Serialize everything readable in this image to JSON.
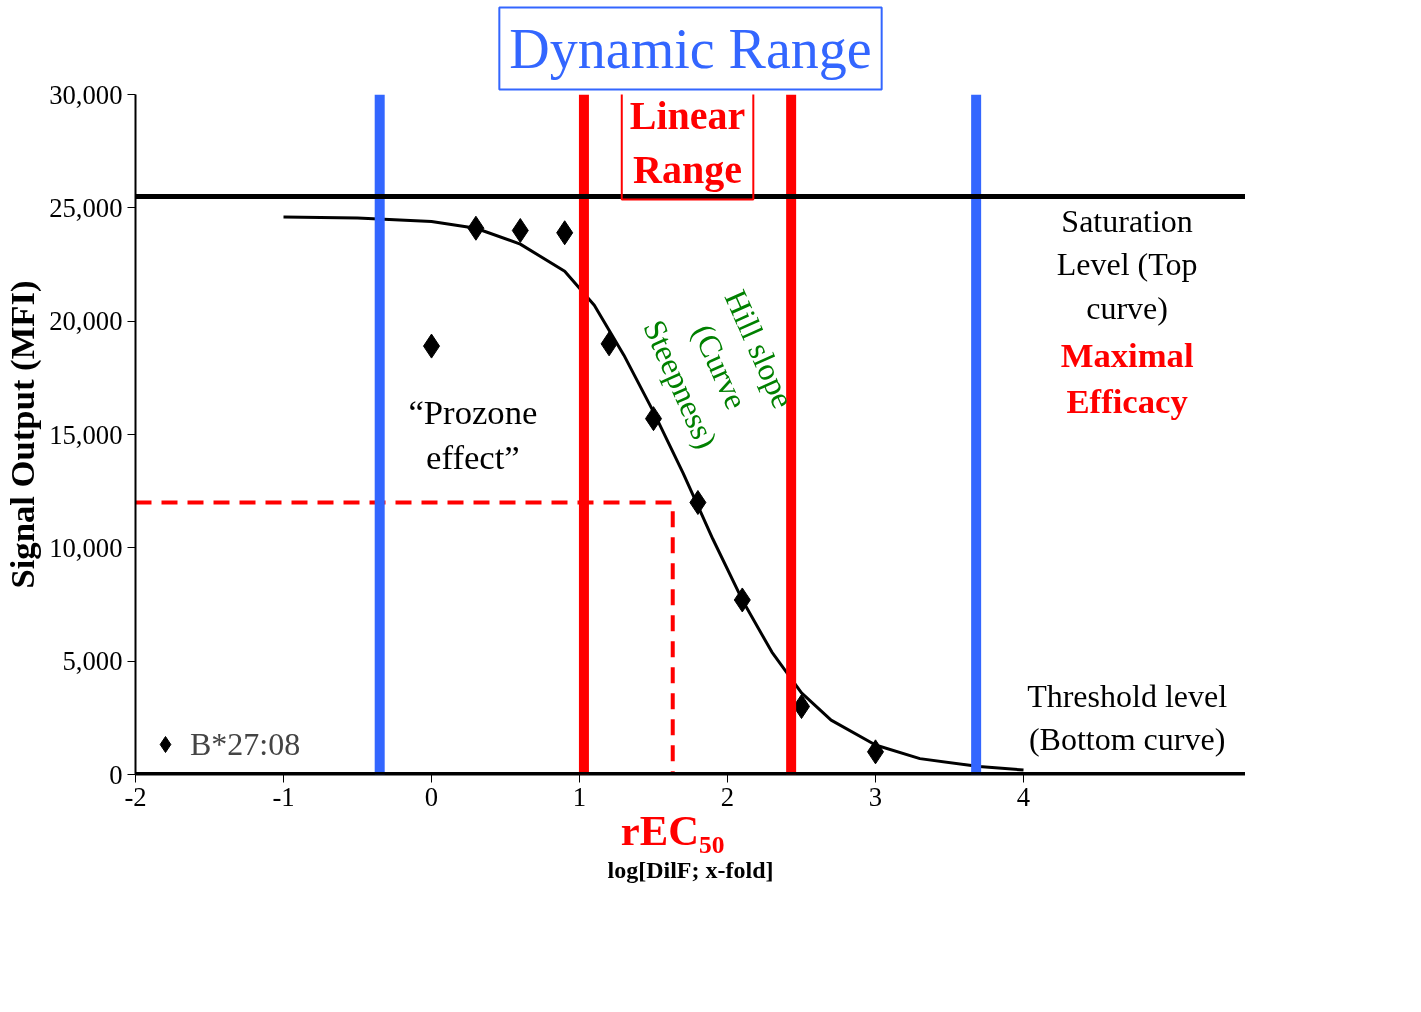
{
  "chart_data": {
    "type": "scatter",
    "title": "Dynamic Range",
    "xlabel": "log[DilF; x-fold]",
    "ylabel": "Signal Output (MFI)",
    "xlim": [
      -2,
      5.5
    ],
    "ylim": [
      0,
      30000
    ],
    "xticks": [
      -2,
      -1,
      0,
      1,
      2,
      3,
      4
    ],
    "yticks": [
      {
        "value": 0,
        "label": "0"
      },
      {
        "value": 5000,
        "label": "5,000"
      },
      {
        "value": 10000,
        "label": "10,000"
      },
      {
        "value": 15000,
        "label": "15,000"
      },
      {
        "value": 20000,
        "label": "20,000"
      },
      {
        "value": 25000,
        "label": "25,000"
      },
      {
        "value": 30000,
        "label": "30,000"
      }
    ],
    "grid": false,
    "legend": "bottom left",
    "series": [
      {
        "name": "B*27:08",
        "marker": "diamond",
        "color": "#000000",
        "x": [
          0,
          0.3,
          0.6,
          0.9,
          1.2,
          1.5,
          1.8,
          2.1,
          2.5,
          3.0
        ],
        "values": [
          18900,
          24100,
          24000,
          23900,
          19000,
          15700,
          12000,
          7700,
          3000,
          1000
        ]
      },
      {
        "type": "line",
        "color": "#000000",
        "marker": "none",
        "line_style": "solid",
        "x": [
          -1,
          -0.5,
          0,
          0.3,
          0.6,
          0.9,
          1.1,
          1.3,
          1.5,
          1.7,
          1.9,
          2.1,
          2.3,
          2.5,
          2.7,
          3.0,
          3.3,
          3.7,
          4.0
        ],
        "values": [
          24600,
          24550,
          24400,
          24100,
          23400,
          22200,
          20700,
          18500,
          16000,
          13300,
          10400,
          7700,
          5400,
          3600,
          2400,
          1300,
          700,
          350,
          200
        ]
      },
      {
        "type": "line",
        "color": "#ff0000",
        "marker": "none",
        "line_style": "dashed",
        "x": [
          -2,
          1.63,
          1.63
        ],
        "values": [
          12000,
          12000,
          0
        ]
      }
    ],
    "ref_lines": [
      {
        "axis": "x",
        "value": -0.35,
        "color": "#3366ff"
      },
      {
        "axis": "x",
        "value": 1.03,
        "color": "#ff0000"
      },
      {
        "axis": "x",
        "value": 2.43,
        "color": "#ff0000"
      },
      {
        "axis": "x",
        "value": 3.68,
        "color": "#3366ff"
      },
      {
        "axis": "y",
        "value": 25500,
        "color": "#000000"
      },
      {
        "axis": "y",
        "value": 0,
        "color": "#000000"
      }
    ],
    "annotations": [
      "Linear\nRange",
      "Saturation\nLevel (Top\ncurve)",
      "Maximal\nEfficacy",
      "“Prozone\neffect”",
      "Hill slope\n(Curve\nSteepness)",
      "Threshold level\n(Bottom curve)",
      "rEC₅₀"
    ]
  }
}
